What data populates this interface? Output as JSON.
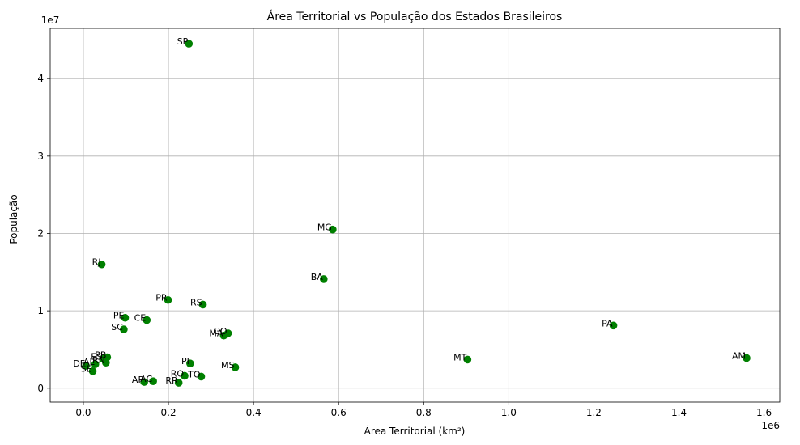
{
  "chart_data": {
    "type": "scatter",
    "title": "Área Territorial vs População dos Estados Brasileiros",
    "xlabel": "Área Territorial (km²)",
    "ylabel": "População",
    "x_multiplier_label": "1e6",
    "y_multiplier_label": "1e7",
    "xlim": [
      -0.078,
      1.637
    ],
    "ylim": [
      -0.18,
      4.65
    ],
    "x_ticks": [
      0.0,
      0.2,
      0.4,
      0.6,
      0.8,
      1.0,
      1.2,
      1.4,
      1.6
    ],
    "x_tick_labels": [
      "0.0",
      "0.2",
      "0.4",
      "0.6",
      "0.8",
      "1.0",
      "1.2",
      "1.4",
      "1.6"
    ],
    "y_ticks": [
      0,
      1,
      2,
      3,
      4
    ],
    "y_tick_labels": [
      "0",
      "1",
      "2",
      "3",
      "4"
    ],
    "grid": true,
    "marker_color": "#008000",
    "points": [
      {
        "label": "SP",
        "x": 0.248,
        "y": 4.45
      },
      {
        "label": "MG",
        "x": 0.586,
        "y": 2.05
      },
      {
        "label": "RJ",
        "x": 0.043,
        "y": 1.6
      },
      {
        "label": "BA",
        "x": 0.565,
        "y": 1.41
      },
      {
        "label": "PR",
        "x": 0.199,
        "y": 1.14
      },
      {
        "label": "RS",
        "x": 0.281,
        "y": 1.08
      },
      {
        "label": "PE",
        "x": 0.098,
        "y": 0.91
      },
      {
        "label": "CE",
        "x": 0.149,
        "y": 0.88
      },
      {
        "label": "PA",
        "x": 1.246,
        "y": 0.81
      },
      {
        "label": "SC",
        "x": 0.095,
        "y": 0.76
      },
      {
        "label": "GO",
        "x": 0.34,
        "y": 0.71
      },
      {
        "label": "MA",
        "x": 0.33,
        "y": 0.68
      },
      {
        "label": "PB",
        "x": 0.056,
        "y": 0.4
      },
      {
        "label": "AM",
        "x": 1.559,
        "y": 0.39
      },
      {
        "label": "ES",
        "x": 0.046,
        "y": 0.38
      },
      {
        "label": "MT",
        "x": 0.903,
        "y": 0.37
      },
      {
        "label": "RN",
        "x": 0.053,
        "y": 0.33
      },
      {
        "label": "PI",
        "x": 0.251,
        "y": 0.32
      },
      {
        "label": "AL",
        "x": 0.028,
        "y": 0.31
      },
      {
        "label": "DF",
        "x": 0.006,
        "y": 0.29
      },
      {
        "label": "MS",
        "x": 0.357,
        "y": 0.27
      },
      {
        "label": "SE",
        "x": 0.022,
        "y": 0.22
      },
      {
        "label": "RO",
        "x": 0.238,
        "y": 0.16
      },
      {
        "label": "TO",
        "x": 0.277,
        "y": 0.15
      },
      {
        "label": "AC",
        "x": 0.164,
        "y": 0.09
      },
      {
        "label": "AP",
        "x": 0.143,
        "y": 0.08
      },
      {
        "label": "RR",
        "x": 0.224,
        "y": 0.07
      }
    ]
  }
}
